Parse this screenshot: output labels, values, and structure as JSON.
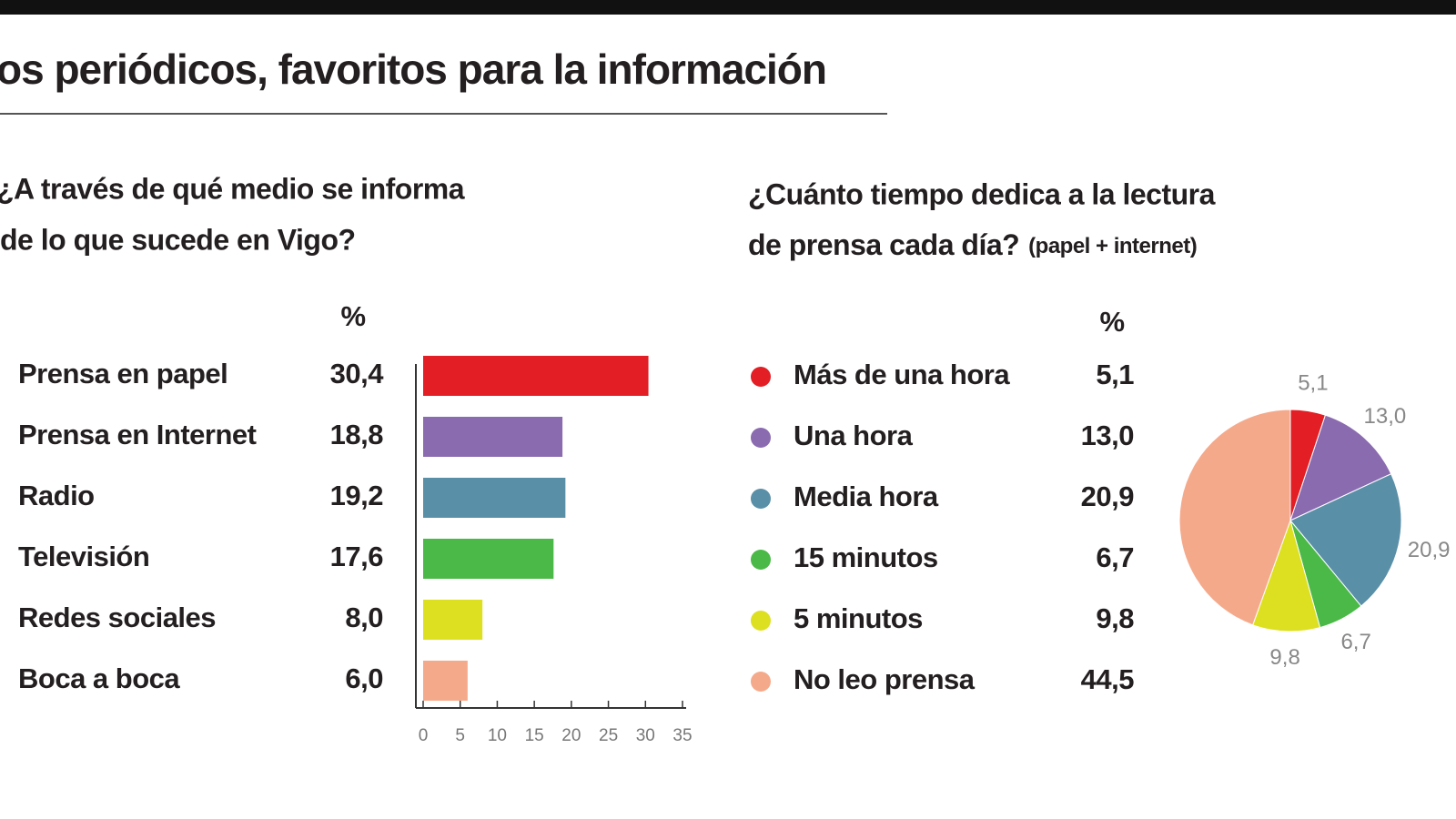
{
  "header": {
    "title": "os periódicos, favoritos para la información"
  },
  "chart_data": [
    {
      "type": "bar",
      "title": [
        "¿A través de qué medio se informa",
        "de lo que sucede en Vigo?"
      ],
      "unit": "%",
      "categories": [
        "Prensa en papel",
        "Prensa en Internet",
        "Radio",
        "Televisión",
        "Redes sociales",
        "Boca a boca"
      ],
      "values": [
        30.4,
        18.8,
        19.2,
        17.6,
        8.0,
        6.0
      ],
      "value_labels": [
        "30,4",
        "18,8",
        "19,2",
        "17,6",
        "8,0",
        "6,0"
      ],
      "colors": [
        "#e31e24",
        "#8a6bb0",
        "#5a8fa8",
        "#4bb948",
        "#dde020",
        "#f5a98b"
      ],
      "xlim": [
        0,
        35
      ],
      "xticks": [
        0,
        5,
        10,
        15,
        20,
        25,
        30,
        35
      ]
    },
    {
      "type": "pie",
      "title": [
        "¿Cuánto tiempo dedica a la lectura",
        "de prensa cada día?"
      ],
      "title_note": "(papel + internet)",
      "unit": "%",
      "categories": [
        "Más de una hora",
        "Una hora",
        "Media hora",
        "15 minutos",
        "5 minutos",
        "No leo prensa"
      ],
      "values": [
        5.1,
        13.0,
        20.9,
        6.7,
        9.8,
        44.5
      ],
      "value_labels": [
        "5,1",
        "13,0",
        "20,9",
        "6,7",
        "9,8",
        "44,5"
      ],
      "colors": [
        "#e31e24",
        "#8a6bb0",
        "#5a8fa8",
        "#4bb948",
        "#dde020",
        "#f5a98b"
      ]
    }
  ]
}
